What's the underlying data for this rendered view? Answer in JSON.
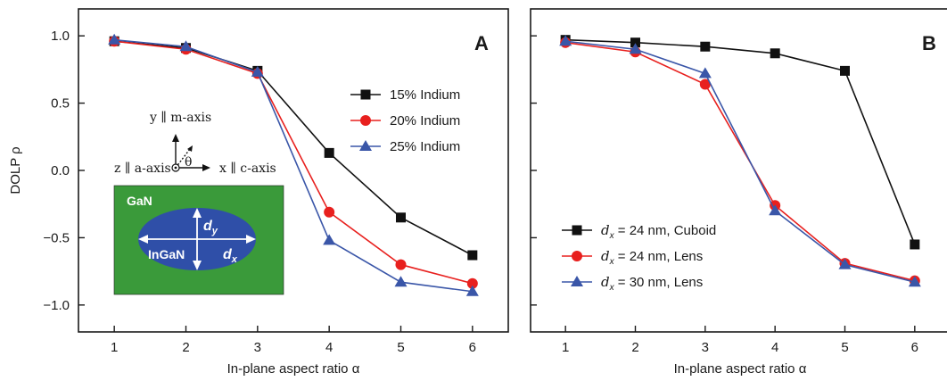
{
  "chart_data": [
    {
      "type": "line",
      "panel": "A",
      "xlabel": "In-plane aspect ratio α",
      "ylabel": "DOLP ρ",
      "xlim": [
        0.5,
        6.5
      ],
      "ylim": [
        -1.2,
        1.2
      ],
      "xticks": [
        1,
        2,
        3,
        4,
        5,
        6
      ],
      "yticks": [
        1.0,
        0.5,
        0.0,
        -0.5,
        -1.0
      ],
      "ytick_labels": [
        "1.0",
        "0.5",
        "0.0",
        "−0.5",
        "−1.0"
      ],
      "legend_position": "center-right",
      "x": [
        1,
        2,
        3,
        4,
        5,
        6
      ],
      "series": [
        {
          "name": "15% Indium",
          "color": "#111111",
          "marker": "square",
          "values": [
            0.96,
            0.91,
            0.74,
            0.13,
            -0.35,
            -0.63
          ]
        },
        {
          "name": "20% Indium",
          "color": "#e8201e",
          "marker": "circle",
          "values": [
            0.96,
            0.9,
            0.72,
            -0.31,
            -0.7,
            -0.84
          ]
        },
        {
          "name": "25% Indium",
          "color": "#3a56a8",
          "marker": "triangle",
          "values": [
            0.97,
            0.92,
            0.73,
            -0.52,
            -0.83,
            -0.9
          ]
        }
      ],
      "inset": {
        "y_axis_label": "y ∥ m-axis",
        "z_axis_label": "z ∥ a-axis",
        "x_axis_label": "x ∥ c-axis",
        "theta": "θ",
        "substrate_label": "GaN",
        "dot_label": "InGaN",
        "dy_label": "d",
        "dy_sub": "y",
        "dx_label": "d",
        "dx_sub": "x",
        "substrate_color": "#3a9a3a",
        "dot_color": "#2f4fa8"
      }
    },
    {
      "type": "line",
      "panel": "B",
      "xlabel": "In-plane aspect ratio α",
      "ylabel": "",
      "xlim": [
        0.5,
        6.5
      ],
      "ylim": [
        -1.2,
        1.2
      ],
      "xticks": [
        1,
        2,
        3,
        4,
        5,
        6
      ],
      "yticks": [
        1.0,
        0.5,
        0.0,
        -0.5,
        -1.0
      ],
      "legend_position": "bottom-left",
      "x": [
        1,
        2,
        3,
        4,
        5,
        6
      ],
      "series": [
        {
          "legend_prefix": "d",
          "legend_sub": "x",
          "legend_rest": " = 24 nm, Cuboid",
          "color": "#111111",
          "marker": "square",
          "values": [
            0.97,
            0.95,
            0.92,
            0.87,
            0.74,
            -0.55
          ]
        },
        {
          "legend_prefix": "d",
          "legend_sub": "x",
          "legend_rest": " = 24 nm, Lens",
          "color": "#e8201e",
          "marker": "circle",
          "values": [
            0.95,
            0.88,
            0.64,
            -0.26,
            -0.69,
            -0.82
          ]
        },
        {
          "legend_prefix": "d",
          "legend_sub": "x",
          "legend_rest": " = 30 nm, Lens",
          "color": "#3a56a8",
          "marker": "triangle",
          "values": [
            0.96,
            0.9,
            0.72,
            -0.3,
            -0.7,
            -0.83
          ]
        }
      ]
    }
  ]
}
